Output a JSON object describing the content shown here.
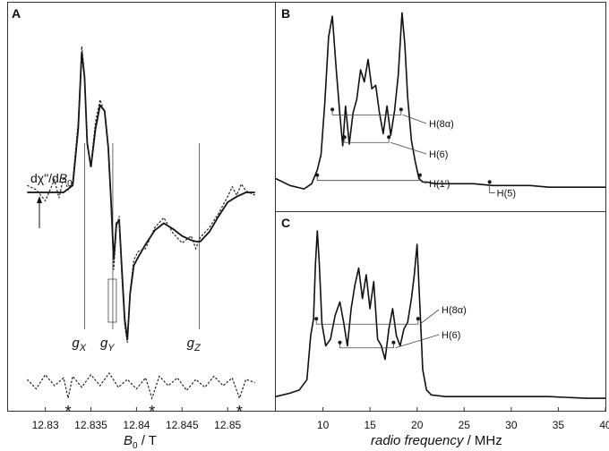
{
  "colors": {
    "trace": "#111111",
    "dotted": "#222222",
    "frame": "#333333",
    "annot": "#444444"
  },
  "chart_data": [
    {
      "panel": "A",
      "type": "line",
      "xlabel_var": "B",
      "xlabel_sub": "0",
      "xlabel_unit": " / T",
      "xticks": [
        "12.83",
        "12.835",
        "12.84",
        "12.845",
        "12.85"
      ],
      "xlim": [
        12.8265,
        12.8545
      ],
      "ylabel_pre": "dχ\"/d",
      "ylabel_var": "B",
      "ylabel_sub": "0",
      "g_labels": [
        {
          "letter": "g",
          "sub": "X",
          "B0": 12.8343
        },
        {
          "letter": "g",
          "sub": "Y",
          "B0": 12.8374
        },
        {
          "letter": "g",
          "sub": "Z",
          "B0": 12.8469
        }
      ],
      "star_label": "*",
      "stars_B0": [
        12.8325,
        12.8417,
        12.8513
      ],
      "series": [
        {
          "style": "solid",
          "x": [
            12.828,
            12.832,
            12.833,
            12.8336,
            12.834,
            12.8343,
            12.8346,
            12.835,
            12.8355,
            12.836,
            12.8365,
            12.8369,
            12.8372,
            12.8375,
            12.8378,
            12.8381,
            12.8384,
            12.8387,
            12.839,
            12.8393,
            12.8397,
            12.8402,
            12.841,
            12.842,
            12.843,
            12.844,
            12.845,
            12.846,
            12.8465,
            12.847,
            12.848,
            12.849,
            12.85,
            12.851,
            12.852,
            12.853
          ],
          "y": [
            0,
            0,
            0.05,
            0.45,
            1.0,
            0.82,
            0.35,
            0.18,
            0.45,
            0.62,
            0.58,
            0.32,
            -0.05,
            -0.48,
            -0.22,
            -0.2,
            -0.55,
            -0.9,
            -1.05,
            -0.72,
            -0.52,
            -0.46,
            -0.37,
            -0.27,
            -0.22,
            -0.26,
            -0.31,
            -0.34,
            -0.35,
            -0.35,
            -0.28,
            -0.17,
            -0.07,
            -0.03,
            0,
            0
          ]
        },
        {
          "style": "dotted",
          "x": [
            12.828,
            12.829,
            12.83,
            12.831,
            12.8315,
            12.832,
            12.8325,
            12.833,
            12.8336,
            12.834,
            12.8343,
            12.8346,
            12.835,
            12.8355,
            12.836,
            12.8365,
            12.8369,
            12.8372,
            12.8375,
            12.8378,
            12.8381,
            12.8384,
            12.8387,
            12.839,
            12.8393,
            12.8397,
            12.8402,
            12.841,
            12.842,
            12.843,
            12.844,
            12.845,
            12.846,
            12.8465,
            12.847,
            12.848,
            12.849,
            12.85,
            12.8505,
            12.851,
            12.8515,
            12.852,
            12.853
          ],
          "y": [
            0.05,
            0.02,
            -0.06,
            0.09,
            -0.04,
            0.11,
            0.02,
            0.08,
            0.5,
            1.04,
            0.84,
            0.33,
            0.2,
            0.5,
            0.66,
            0.57,
            0.3,
            -0.08,
            -0.55,
            -0.25,
            -0.17,
            -0.6,
            -0.94,
            -1.07,
            -0.7,
            -0.48,
            -0.42,
            -0.4,
            -0.25,
            -0.18,
            -0.29,
            -0.36,
            -0.31,
            -0.4,
            -0.32,
            -0.25,
            -0.15,
            -0.03,
            0.04,
            -0.02,
            0.06,
            0.01,
            -0.02
          ]
        },
        {
          "style": "residual",
          "x": [
            12.828,
            12.829,
            12.83,
            12.831,
            12.832,
            12.8325,
            12.833,
            12.834,
            12.835,
            12.836,
            12.837,
            12.838,
            12.839,
            12.84,
            12.841,
            12.8417,
            12.8425,
            12.8435,
            12.8445,
            12.8455,
            12.8465,
            12.8475,
            12.8485,
            12.8495,
            12.8505,
            12.8513,
            12.852,
            12.853
          ],
          "y": [
            0.2,
            -0.4,
            0.5,
            -0.2,
            0.3,
            -1.0,
            0.4,
            -0.3,
            0.5,
            -0.2,
            0.6,
            -0.3,
            0.2,
            -0.4,
            0.3,
            -1.0,
            0.4,
            -0.2,
            0.3,
            -0.5,
            0.2,
            -0.3,
            0.4,
            -0.2,
            0.3,
            -1.0,
            0.2,
            0
          ]
        }
      ]
    },
    {
      "panel": "B",
      "type": "line",
      "xlim": [
        5,
        40
      ],
      "series": [
        {
          "x": [
            5.0,
            6.5,
            8.0,
            8.8,
            9.4,
            9.8,
            10.2,
            10.6,
            11.0,
            11.4,
            11.8,
            12.1,
            12.4,
            12.8,
            13.2,
            13.6,
            14.0,
            14.4,
            14.8,
            15.2,
            15.6,
            16.0,
            16.4,
            16.8,
            17.2,
            17.6,
            18.0,
            18.4,
            18.7,
            19.0,
            19.4,
            19.8,
            20.2,
            20.6,
            21.0,
            22.0,
            24.0,
            26.0,
            28.0,
            30.0,
            32.0,
            34.0,
            36.0,
            38.0,
            40.0
          ],
          "y": [
            0.08,
            0.04,
            0.02,
            0.05,
            0.13,
            0.22,
            0.52,
            0.9,
            1.02,
            0.72,
            0.45,
            0.27,
            0.5,
            0.28,
            0.46,
            0.54,
            0.71,
            0.64,
            0.77,
            0.6,
            0.62,
            0.46,
            0.34,
            0.5,
            0.33,
            0.47,
            0.68,
            1.04,
            0.86,
            0.55,
            0.3,
            0.18,
            0.08,
            0.06,
            0.06,
            0.05,
            0.05,
            0.05,
            0.04,
            0.04,
            0.04,
            0.03,
            0.03,
            0.03,
            0.03
          ]
        }
      ],
      "annotations": [
        {
          "label": "H(8α)",
          "x1": 11.0,
          "x2": 18.3,
          "y": 0.48
        },
        {
          "label": "H(6)",
          "x1": 12.3,
          "x2": 17.0,
          "y": 0.32
        },
        {
          "label": "H(1')",
          "x1": 9.4,
          "x2": 20.3,
          "y": 0.1
        },
        {
          "label": "H(5)",
          "x1": 27.7,
          "x2": 27.7,
          "y": 0.06
        }
      ]
    },
    {
      "panel": "C",
      "type": "line",
      "xlabel": "radio frequency",
      "xlabel_unit": " / MHz",
      "xticks": [
        "10",
        "15",
        "20",
        "25",
        "30",
        "35",
        "40"
      ],
      "xlim": [
        5,
        40
      ],
      "series": [
        {
          "x": [
            5.0,
            6.5,
            7.5,
            8.3,
            8.7,
            9.0,
            9.2,
            9.4,
            9.6,
            9.9,
            10.3,
            10.8,
            11.3,
            11.8,
            12.2,
            12.6,
            13.0,
            13.4,
            13.8,
            14.2,
            14.6,
            15.0,
            15.4,
            15.8,
            16.2,
            16.6,
            17.0,
            17.4,
            17.8,
            18.2,
            18.6,
            19.0,
            19.4,
            19.7,
            20.0,
            20.3,
            20.6,
            21.0,
            21.5,
            23.0,
            26.0,
            30.0,
            34.0,
            38.0,
            40.0
          ],
          "y": [
            0.02,
            0.04,
            0.06,
            0.12,
            0.38,
            0.48,
            0.8,
            1.0,
            0.82,
            0.45,
            0.32,
            0.36,
            0.5,
            0.58,
            0.46,
            0.32,
            0.54,
            0.68,
            0.78,
            0.6,
            0.74,
            0.54,
            0.7,
            0.36,
            0.32,
            0.24,
            0.42,
            0.54,
            0.38,
            0.32,
            0.42,
            0.46,
            0.6,
            0.74,
            0.92,
            0.55,
            0.18,
            0.06,
            0.03,
            0.02,
            0.02,
            0.02,
            0.02,
            0.01,
            0.01
          ]
        }
      ],
      "annotations": [
        {
          "label": "H(8α)",
          "x1": 9.3,
          "x2": 20.1,
          "y": 0.48
        },
        {
          "label": "H(6)",
          "x1": 11.8,
          "x2": 17.5,
          "y": 0.34
        }
      ]
    }
  ]
}
